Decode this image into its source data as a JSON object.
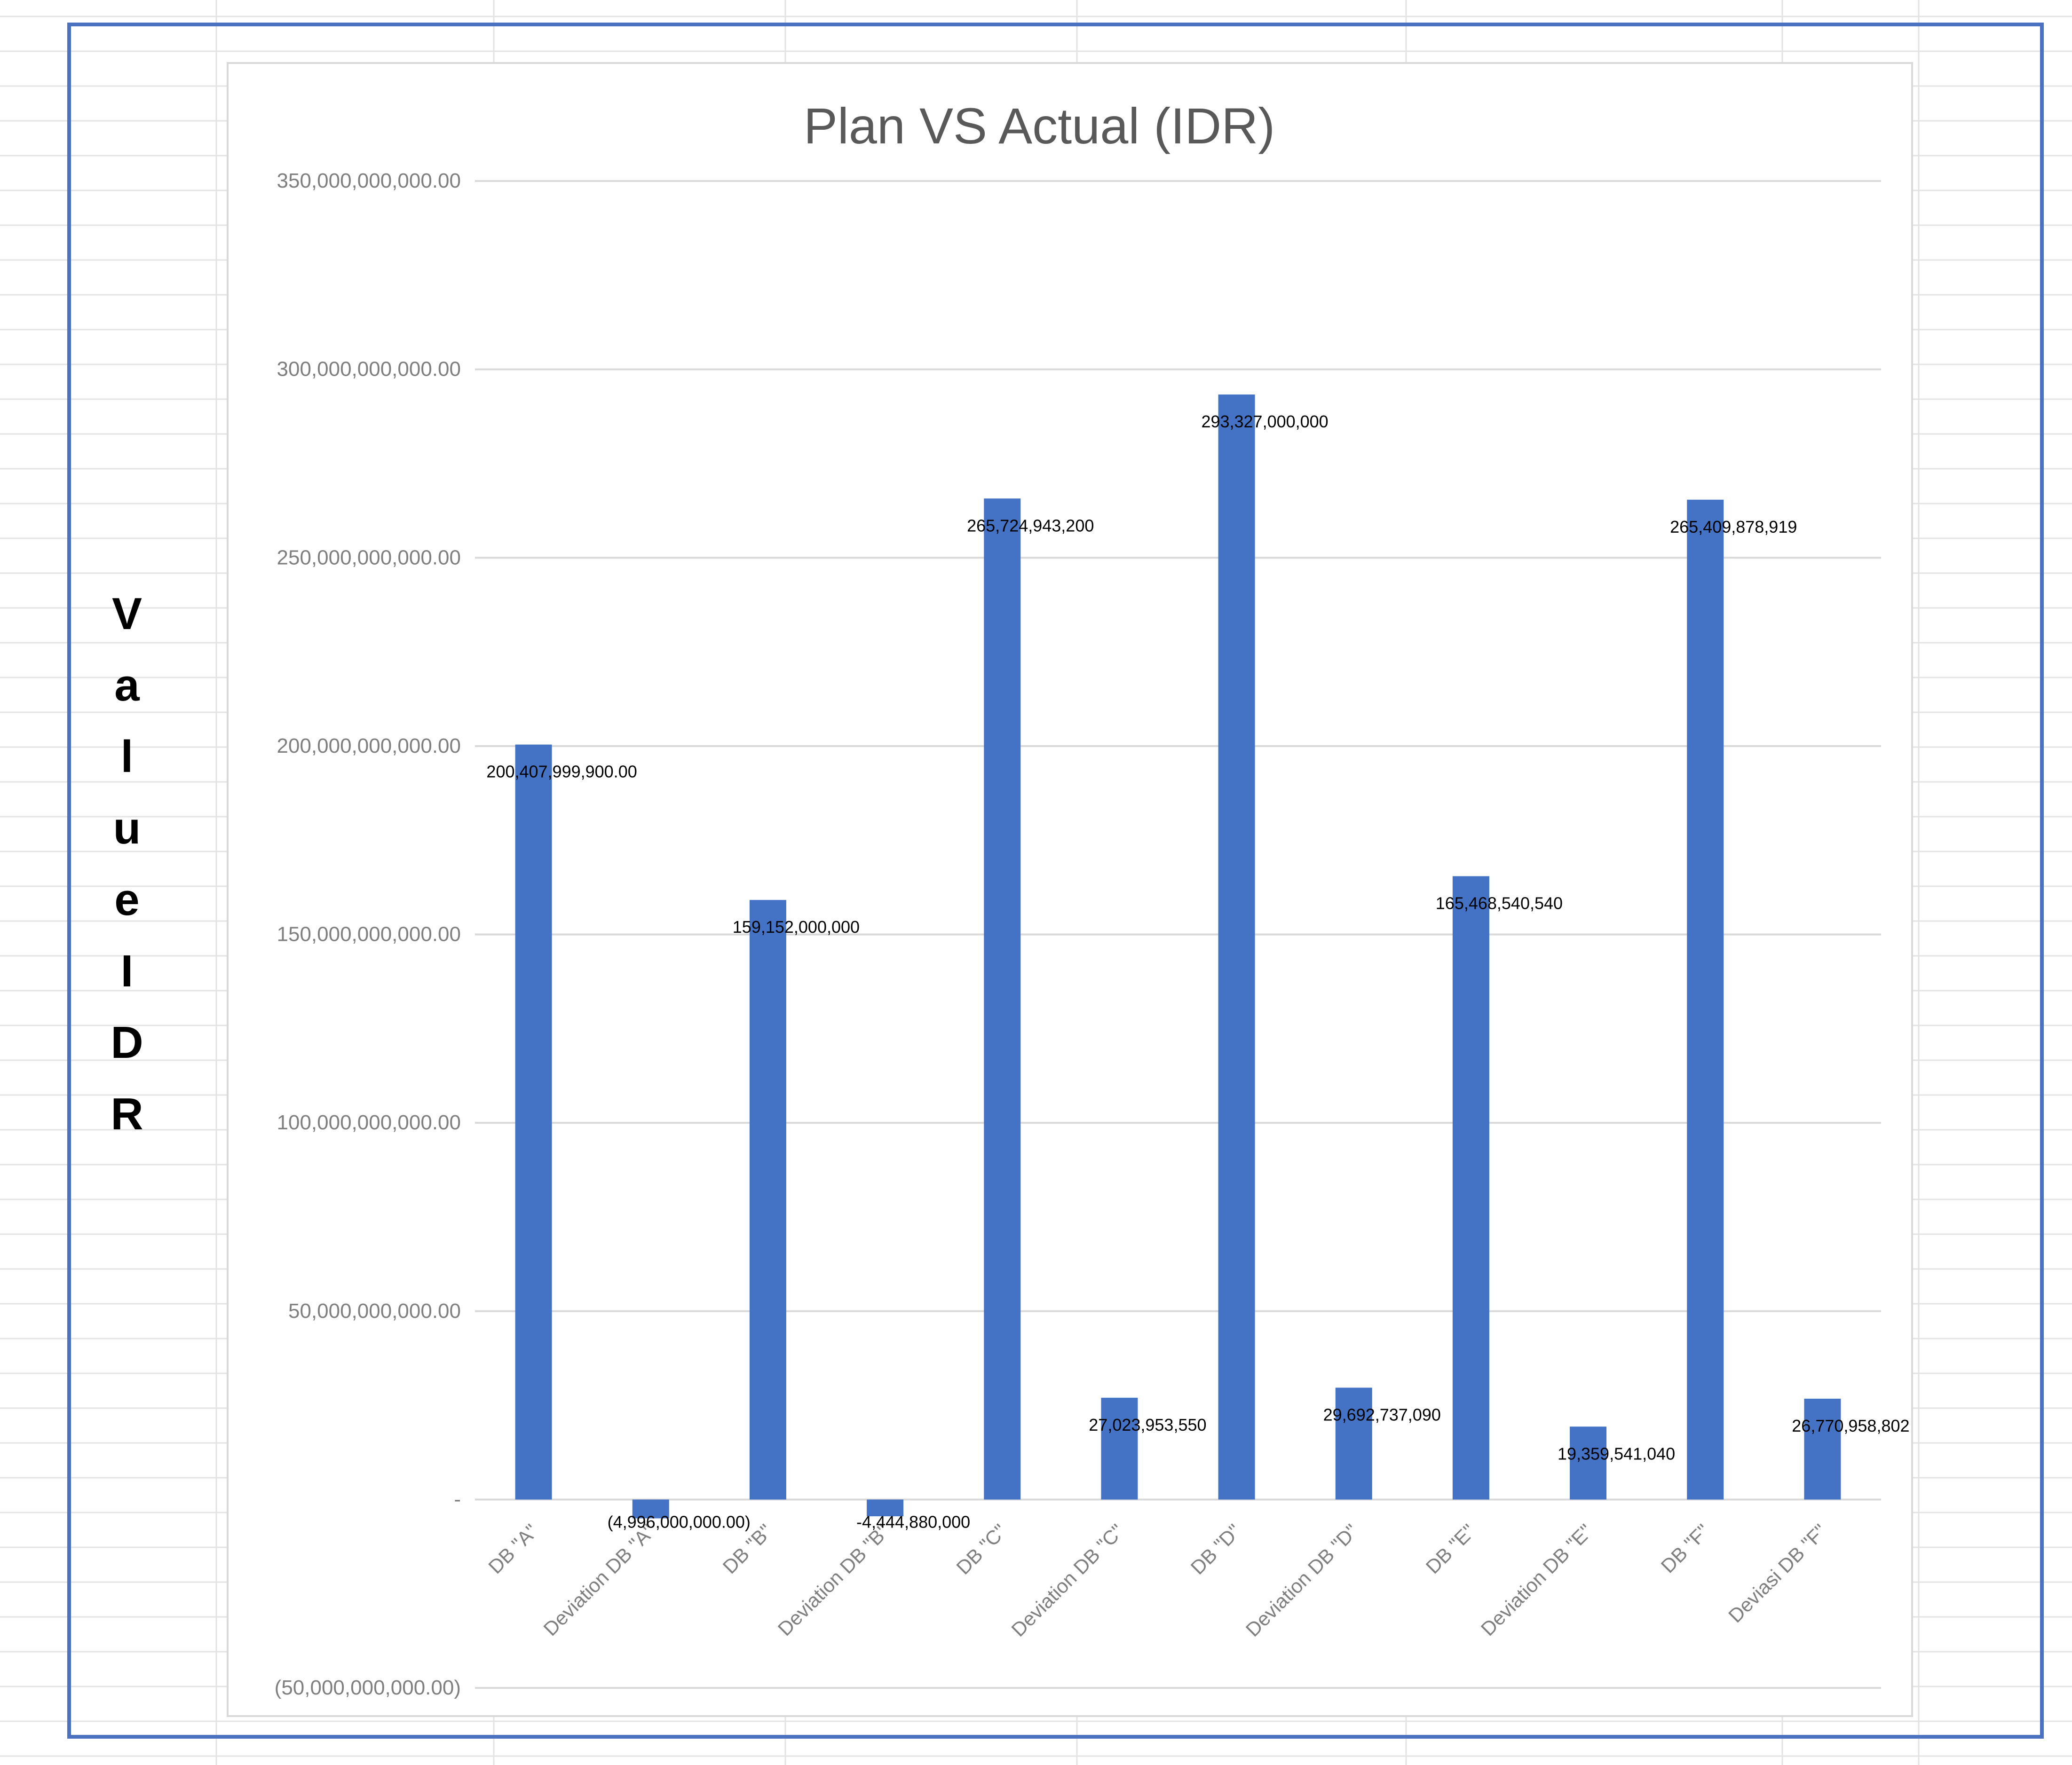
{
  "colors": {
    "bar": "#4472c4",
    "frame": "#4a72c0",
    "grid": "#d9d9d9",
    "title": "#595959",
    "tick_text": "#7f7f7f",
    "data_label": "#000000"
  },
  "side_label": "Value IDR",
  "chart_data": {
    "type": "bar",
    "title": "Plan VS Actual (IDR)",
    "xlabel": "",
    "ylabel": "",
    "ylim": [
      -50000000000,
      350000000000
    ],
    "grid": true,
    "legend": "none",
    "y_ticks": [
      {
        "value": 350000000000,
        "label": "350,000,000,000.00"
      },
      {
        "value": 300000000000,
        "label": "300,000,000,000.00"
      },
      {
        "value": 250000000000,
        "label": "250,000,000,000.00"
      },
      {
        "value": 200000000000,
        "label": "200,000,000,000.00"
      },
      {
        "value": 150000000000,
        "label": "150,000,000,000.00"
      },
      {
        "value": 100000000000,
        "label": "100,000,000,000.00"
      },
      {
        "value": 50000000000,
        "label": "50,000,000,000.00"
      },
      {
        "value": 0,
        "label": "-"
      },
      {
        "value": -50000000000,
        "label": "(50,000,000,000.00)"
      }
    ],
    "categories": [
      "DB \"A\"",
      "Deviation DB \"A\"",
      "DB \"B\"",
      "Deviation DB \"B\"",
      "DB \"C\"",
      "Deviation DB \"C\"",
      "DB \"D\"",
      "Deviation DB \"D\"",
      "DB \"E\"",
      "Deviation DB \"E\"",
      "DB \"F\"",
      "Deviasi DB \"F\""
    ],
    "values": [
      200407999900,
      -4996000000,
      159152000000,
      -4444880000,
      265724943200,
      27023953550,
      293327000000,
      29692737090,
      165468540540,
      19359541040,
      265409878919,
      26770958802
    ],
    "data_labels": [
      "200,407,999,900.00",
      "(4,996,000,000.00)",
      "159,152,000,000",
      "-4,444,880,000",
      "265,724,943,200",
      "27,023,953,550",
      "293,327,000,000",
      "29,692,737,090",
      "165,468,540,540",
      "19,359,541,040",
      "265,409,878,919",
      "26,770,958,802"
    ]
  }
}
